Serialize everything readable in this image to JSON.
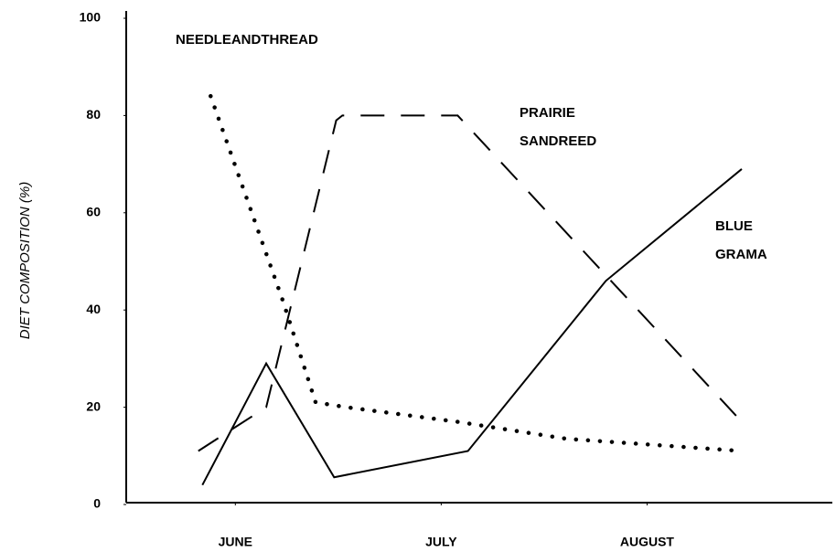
{
  "chart_data": {
    "type": "line",
    "ylabel": "DIET COMPOSITION (%)",
    "xlim": [
      -0.53,
      2.9
    ],
    "ylim": [
      0,
      100
    ],
    "xticks": [
      {
        "value": 0,
        "label": "JUNE"
      },
      {
        "value": 1,
        "label": "JULY"
      },
      {
        "value": 2,
        "label": "AUGUST"
      }
    ],
    "yticks": [
      0,
      20,
      40,
      60,
      80,
      100
    ],
    "series": [
      {
        "name": "BLUE GRAMA",
        "color": "#000000",
        "style": "solid",
        "x": [
          -0.16,
          0.15,
          0.48,
          1.13,
          1.8,
          2.46
        ],
        "values": [
          4,
          29,
          5.6,
          11,
          46,
          69
        ]
      },
      {
        "name": "PRAIRIE SANDREED",
        "color": "#000000",
        "style": "dashed",
        "x": [
          -0.18,
          0.15,
          0.49,
          0.52,
          1.08,
          2.46
        ],
        "values": [
          11,
          20,
          79,
          80,
          80,
          17
        ]
      },
      {
        "name": "NEEDLEANDTHREAD",
        "color": "#000000",
        "style": "dotted",
        "x": [
          -0.12,
          0.03,
          0.23,
          0.39,
          0.54,
          1.08,
          1.61,
          2.46
        ],
        "values": [
          84,
          66,
          42,
          21,
          20,
          17,
          13.5,
          11
        ]
      }
    ]
  }
}
